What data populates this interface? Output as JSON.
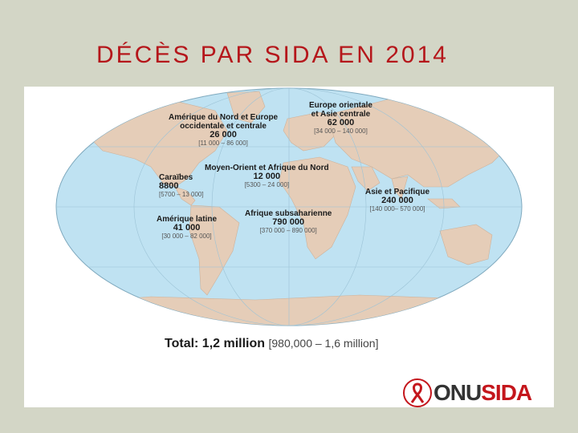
{
  "slide": {
    "title": "DÉCÈS PAR SIDA EN 2014"
  },
  "regions": [
    {
      "name_line1": "Amérique du Nord et Europe",
      "name_line2": "occidentale et centrale",
      "value": "26 000",
      "range": "[11 000 – 86 000]"
    },
    {
      "name_line1": "Europe orientale",
      "name_line2": "et Asie centrale",
      "value": "62 000",
      "range": "[34 000 – 140 000]"
    },
    {
      "name_line1": "Moyen-Orient et Afrique du Nord",
      "name_line2": "",
      "value": "12 000",
      "range": "[5300 – 24 000]"
    },
    {
      "name_line1": "Caraïbes",
      "name_line2": "",
      "value": "8800",
      "range": "[5700 – 13 000]"
    },
    {
      "name_line1": "Asie et Pacifique",
      "name_line2": "",
      "value": "240 000",
      "range": "[140 000– 570 000]"
    },
    {
      "name_line1": "Amérique latine",
      "name_line2": "",
      "value": "41 000",
      "range": "[30 000 – 82 000]"
    },
    {
      "name_line1": "Afrique subsaharienne",
      "name_line2": "",
      "value": "790 000",
      "range": "[370 000 – 890 000]"
    }
  ],
  "total": {
    "label": "Total: 1,2 million",
    "range": "[980,000 – 1,6 million]"
  },
  "logo": {
    "onu": "ONU",
    "sida": "SIDA"
  },
  "colors": {
    "title": "#b5171b",
    "ocean": "#bfe2f2",
    "land": "#e5cdb8",
    "brand": "#c4161c"
  }
}
